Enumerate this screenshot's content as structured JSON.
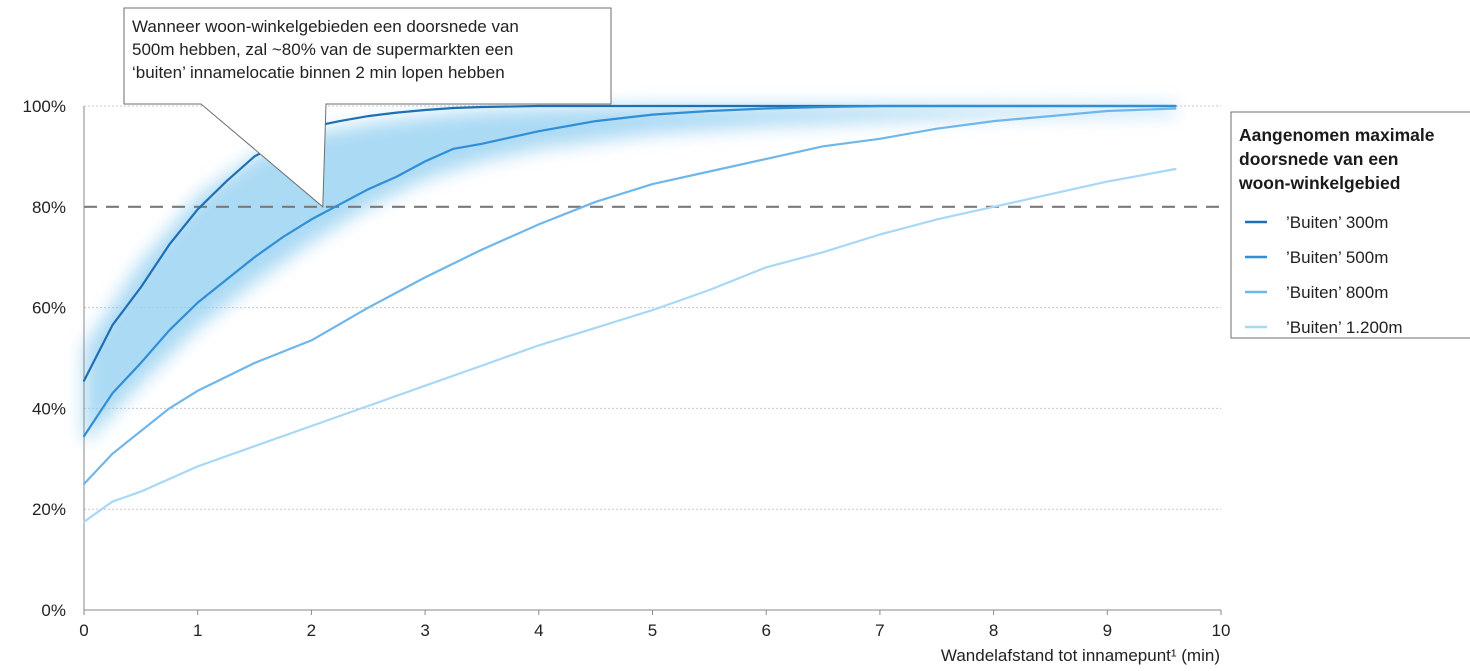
{
  "chart_data": {
    "type": "line",
    "title": "",
    "xlabel": "Wandelafstand tot innamepunt¹ (min)",
    "ylabel": "",
    "xlim": [
      0,
      10
    ],
    "ylim": [
      0,
      100
    ],
    "x_ticks": [
      0,
      1,
      2,
      3,
      4,
      5,
      6,
      7,
      8,
      9,
      10
    ],
    "y_ticks": [
      0,
      20,
      40,
      60,
      80,
      100
    ],
    "y_tick_labels": [
      "0%",
      "20%",
      "40%",
      "60%",
      "80%",
      "100%"
    ],
    "grid": "horizontal dotted",
    "reference_line": {
      "y": 80,
      "style": "dashed"
    },
    "legend": {
      "title_lines": [
        "Aangenomen maximale",
        "doorsnede van een",
        "woon-winkelgebied"
      ],
      "placement": "right"
    },
    "annotation": {
      "lines": [
        "Wanneer woon-winkelgebieden een doorsnede van",
        "500m hebben, zal ~80% van de supermarkten een",
        "‘buiten’ innamelocatie binnen 2 min lopen hebben"
      ],
      "points_to": {
        "x": 2.1,
        "y": 80
      }
    },
    "band": {
      "color": "#8fcdf0",
      "upper": [
        [
          0,
          52
        ],
        [
          0.5,
          69
        ],
        [
          1,
          82
        ],
        [
          1.5,
          90
        ],
        [
          2,
          94.5
        ],
        [
          2.5,
          96.5
        ],
        [
          3,
          98
        ],
        [
          3.5,
          99
        ],
        [
          4,
          99.5
        ],
        [
          5,
          100
        ],
        [
          6,
          100
        ],
        [
          8,
          100
        ],
        [
          9.6,
          100
        ]
      ],
      "lower": [
        [
          0,
          33
        ],
        [
          0.5,
          45
        ],
        [
          1,
          56
        ],
        [
          1.5,
          65
        ],
        [
          2,
          73
        ],
        [
          2.5,
          80
        ],
        [
          3,
          85.5
        ],
        [
          3.5,
          89
        ],
        [
          4,
          91.5
        ],
        [
          4.5,
          93
        ],
        [
          5,
          94.5
        ],
        [
          6,
          96
        ],
        [
          7,
          97
        ],
        [
          8,
          98
        ],
        [
          9.6,
          98.5
        ]
      ]
    },
    "series": [
      {
        "name": "’Buiten’ 300m",
        "color": "#1f6fb4",
        "x": [
          0,
          0.25,
          0.5,
          0.75,
          1.0,
          1.25,
          1.5,
          1.75,
          2.0,
          2.1,
          2.25,
          2.5,
          2.75,
          3.0,
          3.25,
          3.5,
          4.0,
          4.5,
          5.0,
          6.0,
          7.0,
          8.0,
          9.0,
          9.6
        ],
        "y": [
          45.5,
          56.5,
          64,
          72.5,
          79.5,
          85,
          90,
          93,
          95,
          96.3,
          97,
          98,
          98.7,
          99.2,
          99.6,
          99.8,
          100,
          100,
          100,
          100,
          100,
          100,
          100,
          100
        ]
      },
      {
        "name": "’Buiten’ 500m",
        "color": "#2f8ed6",
        "x": [
          0,
          0.25,
          0.5,
          0.75,
          1.0,
          1.25,
          1.5,
          1.75,
          2.0,
          2.25,
          2.5,
          2.75,
          3.0,
          3.25,
          3.5,
          4.0,
          4.5,
          5.0,
          5.5,
          6.0,
          6.5,
          7.0,
          8.0,
          9.0,
          9.6
        ],
        "y": [
          34.5,
          43,
          49,
          55.5,
          61,
          65.5,
          70,
          74,
          77.5,
          80.5,
          83.5,
          86,
          89,
          91.5,
          92.5,
          95,
          97,
          98.3,
          99,
          99.5,
          99.8,
          100,
          100,
          100,
          100
        ]
      },
      {
        "name": "’Buiten’ 800m",
        "color": "#6fb7ea",
        "x": [
          0,
          0.25,
          0.5,
          0.75,
          1.0,
          1.5,
          2.0,
          2.5,
          3.0,
          3.5,
          4.0,
          4.5,
          5.0,
          5.5,
          6.0,
          6.5,
          7.0,
          7.5,
          8.0,
          8.5,
          9.0,
          9.6
        ],
        "y": [
          25,
          31,
          35.5,
          40,
          43.5,
          49,
          53.5,
          60,
          66,
          71.5,
          76.5,
          81,
          84.5,
          87,
          89.5,
          92,
          93.5,
          95.5,
          97,
          98,
          99,
          99.5
        ]
      },
      {
        "name": "’Buiten’ 1.200m",
        "color": "#a8d8f5",
        "x": [
          0,
          0.25,
          0.5,
          0.75,
          1.0,
          1.5,
          2.0,
          2.5,
          3.0,
          3.5,
          4.0,
          4.5,
          5.0,
          5.5,
          6.0,
          6.5,
          7.0,
          7.5,
          8.0,
          8.5,
          9.0,
          9.6
        ],
        "y": [
          17.5,
          21.5,
          23.5,
          26,
          28.5,
          32.5,
          36.5,
          40.5,
          44.5,
          48.5,
          52.5,
          56,
          59.5,
          63.5,
          68,
          71,
          74.5,
          77.5,
          80,
          82.5,
          85,
          87.5
        ]
      }
    ]
  }
}
